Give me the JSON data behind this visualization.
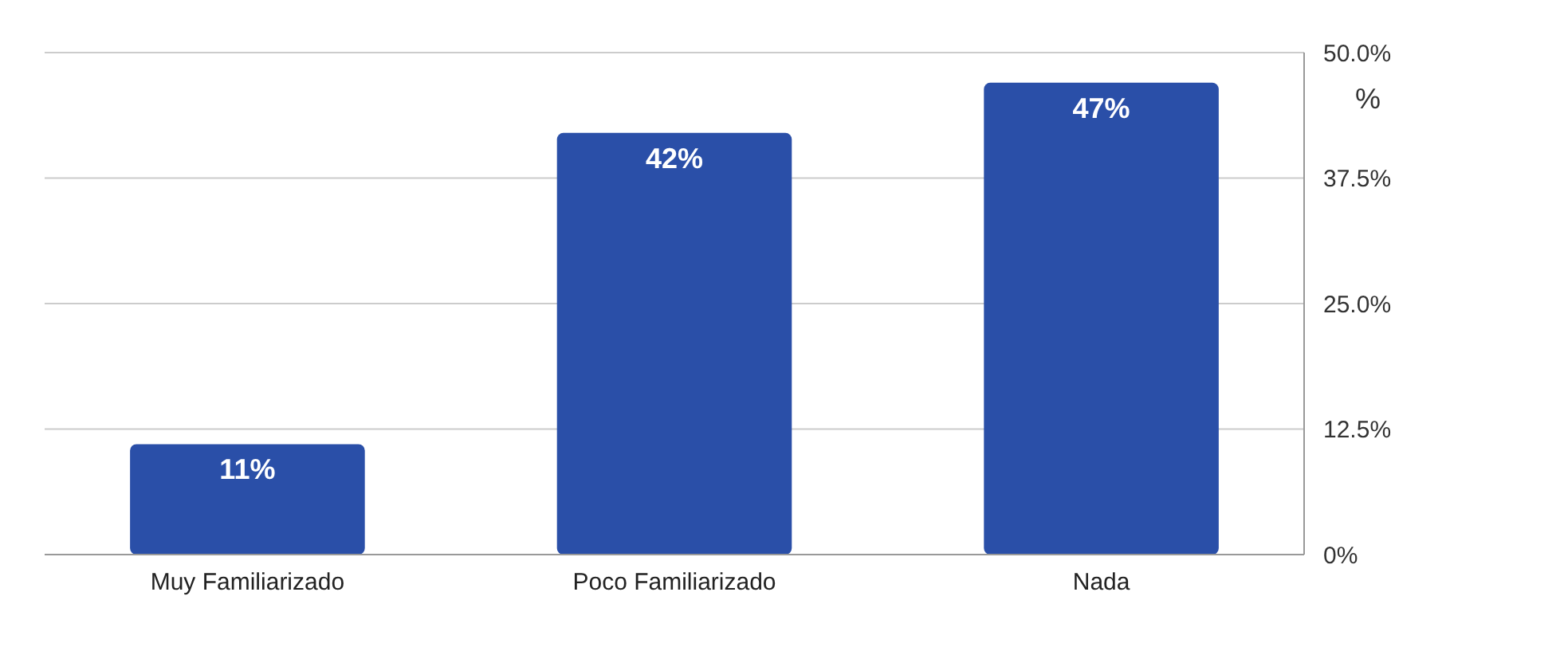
{
  "chart_data": {
    "type": "bar",
    "ylabel": "%",
    "categories": [
      "Muy Familiarizado",
      "Poco Familiarizado",
      "Nada"
    ],
    "values": [
      11,
      42,
      47
    ],
    "value_labels": [
      "11%",
      "42%",
      "47%"
    ],
    "color": "#2a4fa8",
    "ylim": [
      0,
      50
    ],
    "yticks": [
      {
        "value": 0,
        "label": "0%"
      },
      {
        "value": 12.5,
        "label": "12.5%"
      },
      {
        "value": 25,
        "label": "25.0%"
      },
      {
        "value": 37.5,
        "label": "37.5%"
      },
      {
        "value": 50,
        "label": "50.0%"
      }
    ],
    "grid": "y"
  }
}
